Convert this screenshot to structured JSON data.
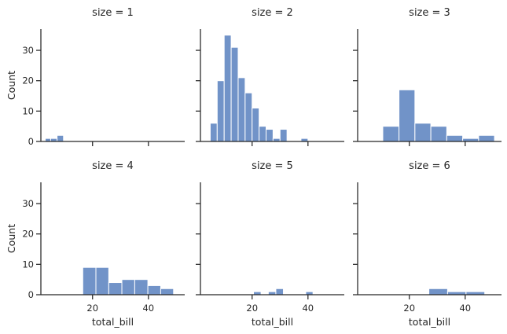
{
  "chart_data": {
    "type": "bar",
    "kind": "histogram-facet-grid",
    "xlabel": "total_bill",
    "ylabel": "Count",
    "bar_color": "#7193c8",
    "xlim": [
      1.5,
      53
    ],
    "ylim": [
      0,
      37
    ],
    "xticks": [
      20,
      40
    ],
    "xtick_labels": [
      "20",
      "40"
    ],
    "yticks": [
      0,
      10,
      20,
      30
    ],
    "ytick_labels": [
      "0",
      "10",
      "20",
      "30"
    ],
    "panels": [
      {
        "title": "size = 1",
        "show_xlabel": false,
        "show_xticklabels": false,
        "bins": [
          {
            "x0": 3.07,
            "x1": 5.0,
            "count": 1
          },
          {
            "x0": 5.0,
            "x1": 7.3,
            "count": 1
          },
          {
            "x0": 7.3,
            "x1": 9.6,
            "count": 2
          }
        ]
      },
      {
        "title": "size = 2",
        "show_xlabel": false,
        "show_xticklabels": false,
        "bins": [
          {
            "x0": 5.0,
            "x1": 7.5,
            "count": 6
          },
          {
            "x0": 7.5,
            "x1": 10.0,
            "count": 20
          },
          {
            "x0": 10.0,
            "x1": 12.5,
            "count": 35
          },
          {
            "x0": 12.5,
            "x1": 15.0,
            "count": 31
          },
          {
            "x0": 15.0,
            "x1": 17.5,
            "count": 21
          },
          {
            "x0": 17.5,
            "x1": 20.0,
            "count": 16
          },
          {
            "x0": 20.0,
            "x1": 22.5,
            "count": 11
          },
          {
            "x0": 22.5,
            "x1": 25.0,
            "count": 5
          },
          {
            "x0": 25.0,
            "x1": 27.5,
            "count": 4
          },
          {
            "x0": 27.5,
            "x1": 30.0,
            "count": 1
          },
          {
            "x0": 30.0,
            "x1": 32.5,
            "count": 4
          },
          {
            "x0": 32.5,
            "x1": 35.0,
            "count": 0
          },
          {
            "x0": 35.0,
            "x1": 37.5,
            "count": 0
          },
          {
            "x0": 37.5,
            "x1": 40.0,
            "count": 1
          }
        ]
      },
      {
        "title": "size = 3",
        "show_xlabel": false,
        "show_xticklabels": false,
        "bins": [
          {
            "x0": 10.5,
            "x1": 16.3,
            "count": 5
          },
          {
            "x0": 16.3,
            "x1": 22.0,
            "count": 17
          },
          {
            "x0": 22.0,
            "x1": 27.7,
            "count": 6
          },
          {
            "x0": 27.7,
            "x1": 33.4,
            "count": 5
          },
          {
            "x0": 33.4,
            "x1": 39.1,
            "count": 2
          },
          {
            "x0": 39.1,
            "x1": 44.8,
            "count": 1
          },
          {
            "x0": 44.8,
            "x1": 50.5,
            "count": 2
          }
        ]
      },
      {
        "title": "size = 4",
        "show_xlabel": true,
        "show_xticklabels": true,
        "bins": [
          {
            "x0": 16.5,
            "x1": 21.2,
            "count": 9
          },
          {
            "x0": 21.2,
            "x1": 25.8,
            "count": 9
          },
          {
            "x0": 25.8,
            "x1": 30.5,
            "count": 4
          },
          {
            "x0": 30.5,
            "x1": 35.1,
            "count": 5
          },
          {
            "x0": 35.1,
            "x1": 39.8,
            "count": 5
          },
          {
            "x0": 39.8,
            "x1": 44.4,
            "count": 3
          },
          {
            "x0": 44.4,
            "x1": 49.0,
            "count": 2
          }
        ]
      },
      {
        "title": "size = 5",
        "show_xlabel": true,
        "show_xticklabels": true,
        "bins": [
          {
            "x0": 20.5,
            "x1": 23.2,
            "count": 1
          },
          {
            "x0": 23.2,
            "x1": 25.8,
            "count": 0
          },
          {
            "x0": 25.8,
            "x1": 28.5,
            "count": 1
          },
          {
            "x0": 28.5,
            "x1": 31.2,
            "count": 2
          },
          {
            "x0": 31.2,
            "x1": 33.8,
            "count": 0
          },
          {
            "x0": 33.8,
            "x1": 36.5,
            "count": 0
          },
          {
            "x0": 36.5,
            "x1": 39.2,
            "count": 0
          },
          {
            "x0": 39.2,
            "x1": 41.8,
            "count": 1
          }
        ]
      },
      {
        "title": "size = 6",
        "show_xlabel": true,
        "show_xticklabels": true,
        "bins": [
          {
            "x0": 27.0,
            "x1": 33.7,
            "count": 2
          },
          {
            "x0": 33.7,
            "x1": 40.3,
            "count": 1
          },
          {
            "x0": 40.3,
            "x1": 47.0,
            "count": 1
          }
        ]
      }
    ]
  }
}
